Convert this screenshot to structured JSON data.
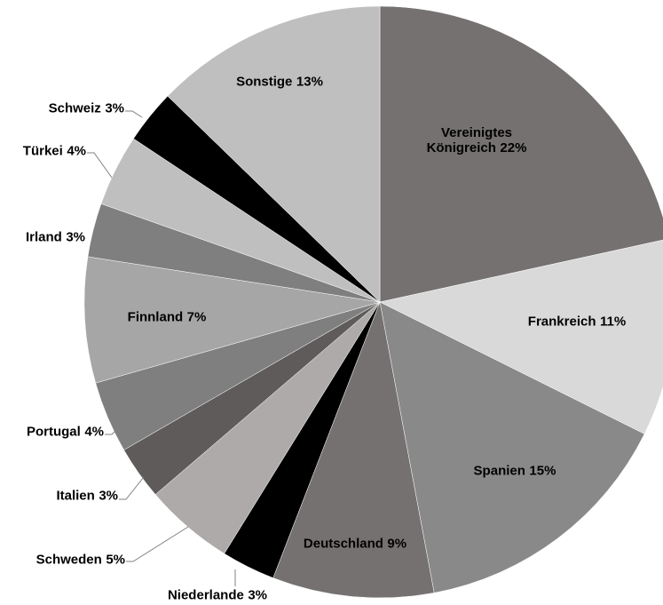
{
  "chart_data": {
    "type": "pie",
    "categories": [
      "Vereinigtes Königreich",
      "Frankreich",
      "Spanien",
      "Deutschland",
      "Niederlande",
      "Schweden",
      "Italien",
      "Portugal",
      "Finnland",
      "Irland",
      "Türkei",
      "Schweiz",
      "Sonstige"
    ],
    "values": [
      22,
      11,
      15,
      9,
      3,
      5,
      3,
      4,
      7,
      3,
      4,
      3,
      13
    ],
    "value_labels": [
      "22%",
      "11%",
      "15%",
      "9%",
      "3%",
      "5%",
      "3%",
      "4%",
      "7%",
      "3%",
      "4%",
      "3%",
      "13%"
    ],
    "colors": [
      "#767171",
      "#d9d9d9",
      "#898989",
      "#767171",
      "#000000",
      "#aeaaaa",
      "#5f5b5b",
      "#7f7f7f",
      "#a6a6a6",
      "#7f7f7f",
      "#bfbfbf",
      "#000000",
      "#bfbfbf"
    ]
  }
}
